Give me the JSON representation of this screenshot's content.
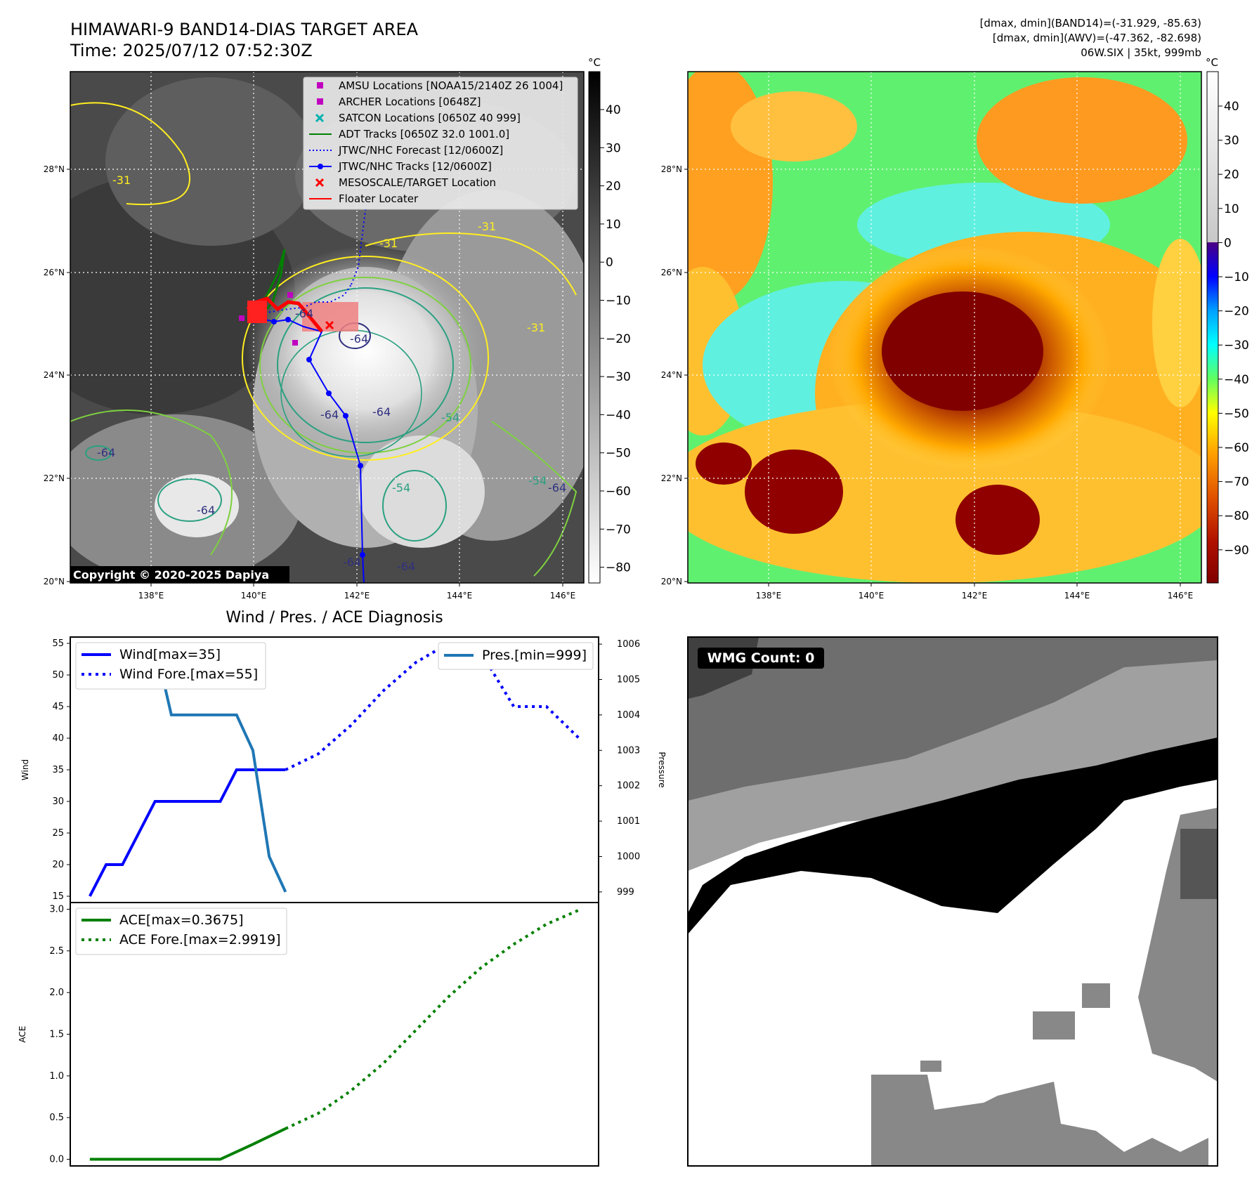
{
  "header": {
    "title": "HIMAWARI-9 BAND14-DIAS TARGET AREA",
    "time": "Time: 2025/07/12 07:52:30Z",
    "info_line1": "[dmax, dmin](BAND14)=(-31.929, -85.63)",
    "info_line2": "[dmax, dmin](AWV)=(-47.362, -82.698)",
    "info_line3": "06W.SIX | 35kt, 999mb"
  },
  "map": {
    "lat_labels": [
      "28°N",
      "26°N",
      "24°N",
      "22°N",
      "20°N"
    ],
    "lon_labels": [
      "138°E",
      "140°E",
      "142°E",
      "144°E",
      "146°E"
    ],
    "copyright": "Copyright © 2020-2025 Dapiya",
    "contour_labels": [
      "-31",
      "-31",
      "-31",
      "-31",
      "-54",
      "-54",
      "-54",
      "-64",
      "-64",
      "-64",
      "-64",
      "-64",
      "-64",
      "-64",
      "-64",
      "-64"
    ],
    "colors": {
      "track": "#0000ff",
      "adt": "#008000",
      "floater": "#ff0000",
      "amsu": "#c000c0",
      "satcon": "#00b0b0"
    }
  },
  "map_legend": [
    {
      "label": "AMSU Locations [NOAA15/2140Z 26 1004]",
      "marker": "square",
      "color": "#c000c0"
    },
    {
      "label": "ARCHER Locations [0648Z]",
      "marker": "square",
      "color": "#c000c0"
    },
    {
      "label": "SATCON Locations [0650Z 40 999]",
      "marker": "x",
      "color": "#00b0b0"
    },
    {
      "label": "ADT Tracks [0650Z 32.0 1001.0]",
      "marker": "line",
      "color": "#008000"
    },
    {
      "label": "JTWC/NHC Forecast [12/0600Z]",
      "marker": "dotted",
      "color": "#0000ff"
    },
    {
      "label": "JTWC/NHC Tracks [12/0600Z]",
      "marker": "line-dot",
      "color": "#0000ff"
    },
    {
      "label": "MESOSCALE/TARGET Location",
      "marker": "x",
      "color": "#ff0000"
    },
    {
      "label": "Floater Locater",
      "marker": "line",
      "color": "#ff0000"
    }
  ],
  "colorbar_gray": {
    "unit": "°C",
    "ticks": [
      "40",
      "30",
      "20",
      "10",
      "0",
      "−10",
      "−20",
      "−30",
      "−40",
      "−50",
      "−60",
      "−70",
      "−80"
    ]
  },
  "colorbar_color": {
    "unit": "°C",
    "ticks": [
      "40",
      "30",
      "20",
      "10",
      "0",
      "−10",
      "−20",
      "−30",
      "−40",
      "−50",
      "−60",
      "−70",
      "−80",
      "−90"
    ]
  },
  "wmg": {
    "label": "WMG Count: 0"
  },
  "chart_data": [
    {
      "type": "line",
      "title": "Wind / Pres. / ACE Diagnosis",
      "ylabel": "Wind",
      "ylabel_right": "Pressure",
      "ylim": [
        14,
        56
      ],
      "ylim_right": [
        998.7,
        1006.2
      ],
      "yticks": [
        "15",
        "20",
        "25",
        "30",
        "35",
        "40",
        "45",
        "50",
        "55"
      ],
      "yticks_right": [
        "999",
        "1000",
        "1001",
        "1002",
        "1003",
        "1004",
        "1005",
        "1006"
      ],
      "series": [
        {
          "name": "Wind[max=35]",
          "style": "solid",
          "color": "#0000ff",
          "x": [
            0,
            1,
            2,
            3,
            4,
            5,
            6,
            7,
            8,
            9,
            10,
            11,
            12
          ],
          "values": [
            15,
            20,
            20,
            25,
            30,
            30,
            30,
            30,
            30,
            35,
            35,
            35,
            35
          ]
        },
        {
          "name": "Wind Fore.[max=55]",
          "style": "dotted",
          "color": "#0000ff",
          "x": [
            12,
            14,
            16,
            18,
            20,
            22,
            24,
            26,
            28,
            30
          ],
          "values": [
            35,
            37.5,
            42,
            47.5,
            52,
            55,
            53.5,
            45,
            45,
            40
          ]
        },
        {
          "name": "Pres.[min=999]",
          "style": "solid",
          "color": "#1f77b4",
          "axis": "right",
          "x": [
            0,
            1,
            2,
            3,
            4,
            5,
            6,
            7,
            8,
            9,
            10,
            11,
            12
          ],
          "values": [
            1006,
            1006,
            1006,
            1006,
            1006,
            1004,
            1004,
            1004,
            1004,
            1004,
            1003,
            1000,
            999
          ]
        }
      ]
    },
    {
      "type": "line",
      "ylabel": "ACE",
      "ylim": [
        -0.08,
        3.08
      ],
      "yticks": [
        "0.0",
        "0.5",
        "1.0",
        "1.5",
        "2.0",
        "2.5",
        "3.0"
      ],
      "series": [
        {
          "name": "ACE[max=0.3675]",
          "style": "solid",
          "color": "#008000",
          "x": [
            0,
            2,
            4,
            6,
            8,
            10,
            12
          ],
          "values": [
            0,
            0,
            0,
            0,
            0,
            0.18,
            0.3675
          ]
        },
        {
          "name": "ACE Fore.[max=2.9919]",
          "style": "dotted",
          "color": "#008000",
          "x": [
            12,
            14,
            16,
            18,
            20,
            22,
            24,
            26,
            28,
            30
          ],
          "values": [
            0.3675,
            0.55,
            0.82,
            1.15,
            1.55,
            1.95,
            2.3,
            2.58,
            2.82,
            2.99
          ]
        }
      ]
    }
  ]
}
